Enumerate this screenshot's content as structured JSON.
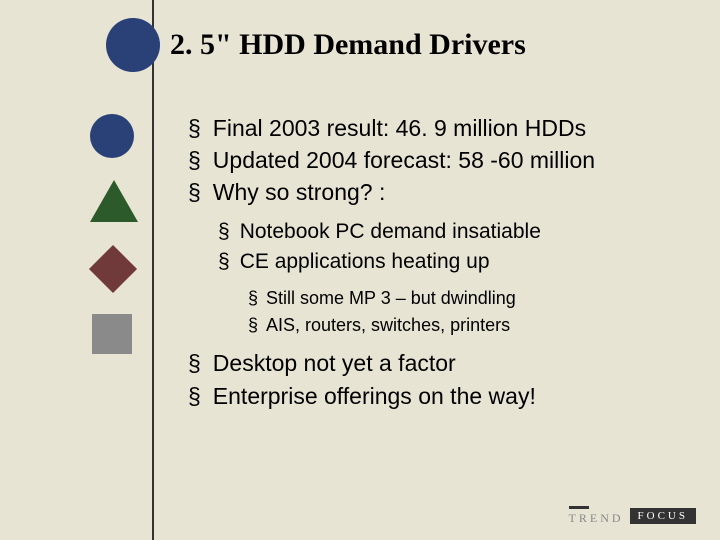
{
  "title": "2. 5\" HDD Demand Drivers",
  "bullets": {
    "b0": "Final 2003 result: 46. 9 million HDDs",
    "b1": "Updated 2004 forecast: 58 -60 million",
    "b2": "Why so strong? :",
    "b2_0": "Notebook PC demand insatiable",
    "b2_1": "CE applications heating up",
    "b2_1_0": "Still some MP 3 – but dwindling",
    "b2_1_1": "AIS, routers, switches, printers",
    "b3": "Desktop not yet a factor",
    "b4": "Enterprise offerings on the way!"
  },
  "footer": {
    "trend": "TREND",
    "focus": "FOCUS"
  },
  "colors": {
    "background": "#e8e4d4",
    "circle": "#2a4178",
    "triangle": "#2d5a2a",
    "diamond": "#703a3a",
    "square": "#8a8a8a"
  }
}
